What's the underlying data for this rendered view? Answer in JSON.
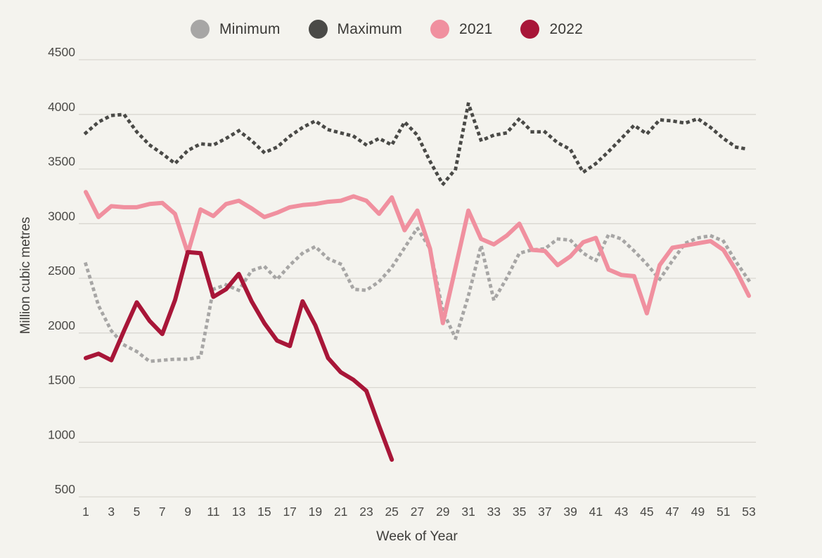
{
  "colors": {
    "background": "#f4f3ee",
    "gridline": "#d9d7d1",
    "tick_text": "#4b4a47",
    "legend_text": "#3a3936"
  },
  "chart_data": {
    "type": "line",
    "title": "",
    "xlabel": "Week of Year",
    "ylabel": "Million cubic metres",
    "axis": {
      "ymin": 500,
      "ymax": 4500,
      "ystep": 500,
      "xmin": 1,
      "xmax": 53
    },
    "grid": "horizontal",
    "legend_position": "top-center",
    "x": [
      1,
      2,
      3,
      4,
      5,
      6,
      7,
      8,
      9,
      10,
      11,
      12,
      13,
      14,
      15,
      16,
      17,
      18,
      19,
      20,
      21,
      22,
      23,
      24,
      25,
      26,
      27,
      28,
      29,
      30,
      31,
      32,
      33,
      34,
      35,
      36,
      37,
      38,
      39,
      40,
      41,
      42,
      43,
      44,
      45,
      46,
      47,
      48,
      49,
      50,
      51,
      52,
      53
    ],
    "x_tick_labels": [
      1,
      3,
      5,
      7,
      9,
      11,
      13,
      15,
      17,
      19,
      21,
      23,
      25,
      27,
      29,
      31,
      33,
      35,
      37,
      39,
      41,
      43,
      45,
      47,
      49,
      51,
      53
    ],
    "series": [
      {
        "name": "Minimum",
        "color": "#a7a6a5",
        "style": "dotted",
        "values": [
          2630,
          2250,
          2020,
          1890,
          1830,
          1740,
          1750,
          1760,
          1760,
          1780,
          2400,
          2440,
          2390,
          2570,
          2610,
          2490,
          2620,
          2730,
          2790,
          2680,
          2630,
          2400,
          2390,
          2470,
          2600,
          2780,
          2960,
          2770,
          2200,
          1950,
          2340,
          2800,
          2300,
          2500,
          2730,
          2760,
          2770,
          2860,
          2850,
          2730,
          2660,
          2900,
          2860,
          2750,
          2630,
          2490,
          2660,
          2820,
          2870,
          2890,
          2840,
          2650,
          2480
        ]
      },
      {
        "name": "Maximum",
        "color": "#4a4a47",
        "style": "dotted",
        "values": [
          3830,
          3930,
          3990,
          4000,
          3840,
          3720,
          3640,
          3550,
          3670,
          3730,
          3720,
          3780,
          3850,
          3760,
          3650,
          3700,
          3800,
          3880,
          3940,
          3860,
          3830,
          3800,
          3720,
          3780,
          3720,
          3930,
          3810,
          3570,
          3360,
          3500,
          4100,
          3760,
          3810,
          3830,
          3960,
          3840,
          3840,
          3740,
          3680,
          3470,
          3550,
          3660,
          3780,
          3900,
          3820,
          3950,
          3940,
          3920,
          3960,
          3880,
          3780,
          3700,
          3680
        ]
      },
      {
        "name": "2021",
        "color": "#f0909f",
        "style": "solid",
        "values": [
          3290,
          3060,
          3160,
          3150,
          3150,
          3180,
          3190,
          3090,
          2730,
          3130,
          3070,
          3180,
          3210,
          3140,
          3060,
          3100,
          3150,
          3170,
          3180,
          3200,
          3210,
          3250,
          3210,
          3090,
          3240,
          2940,
          3120,
          2770,
          2090,
          2600,
          3120,
          2860,
          2810,
          2890,
          3000,
          2760,
          2750,
          2620,
          2700,
          2830,
          2870,
          2580,
          2530,
          2520,
          2180,
          2620,
          2780,
          2800,
          2820,
          2840,
          2760,
          2570,
          2340
        ]
      },
      {
        "name": "2022",
        "color": "#a81638",
        "style": "solid",
        "values": [
          1770,
          1810,
          1750,
          2020,
          2280,
          2110,
          1990,
          2300,
          2740,
          2730,
          2330,
          2400,
          2540,
          2290,
          2090,
          1930,
          1880,
          2290,
          2070,
          1770,
          1640,
          1570,
          1470,
          1150,
          840
        ]
      }
    ]
  }
}
